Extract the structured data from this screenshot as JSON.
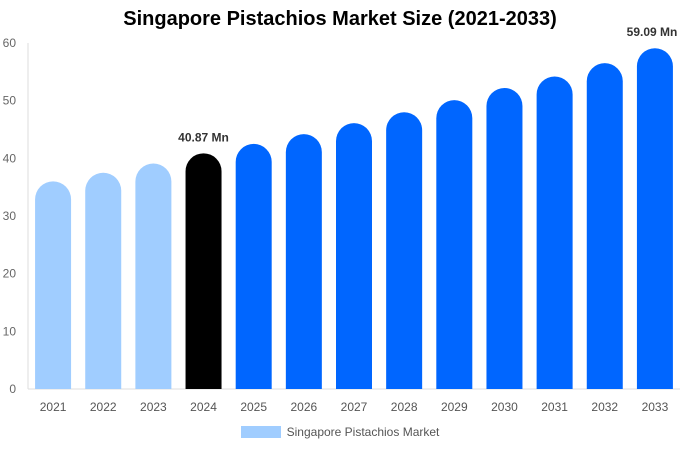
{
  "chart_data": {
    "type": "bar",
    "title": "Singapore Pistachios Market Size (2021-2033)",
    "categories": [
      "2021",
      "2022",
      "2023",
      "2024",
      "2025",
      "2026",
      "2027",
      "2028",
      "2029",
      "2030",
      "2031",
      "2032",
      "2033"
    ],
    "series": [
      {
        "name": "Singapore Pistachios Market",
        "values": [
          36.0,
          37.5,
          39.1,
          40.87,
          42.5,
          44.2,
          46.1,
          48.0,
          50.1,
          52.2,
          54.2,
          56.5,
          59.09
        ]
      }
    ],
    "data_labels": [
      {
        "category": "2024",
        "text": "40.87 Mn"
      },
      {
        "category": "2033",
        "text": "59.09 Mn"
      }
    ],
    "ylim": [
      0,
      60
    ],
    "yticks": [
      0,
      10,
      20,
      30,
      40,
      50,
      60
    ],
    "xlabel": "",
    "ylabel": "",
    "grid": false,
    "legend_position": "bottom",
    "colors": {
      "historical": "#a0cdff",
      "current": "#000000",
      "forecast": "#0066ff"
    }
  }
}
